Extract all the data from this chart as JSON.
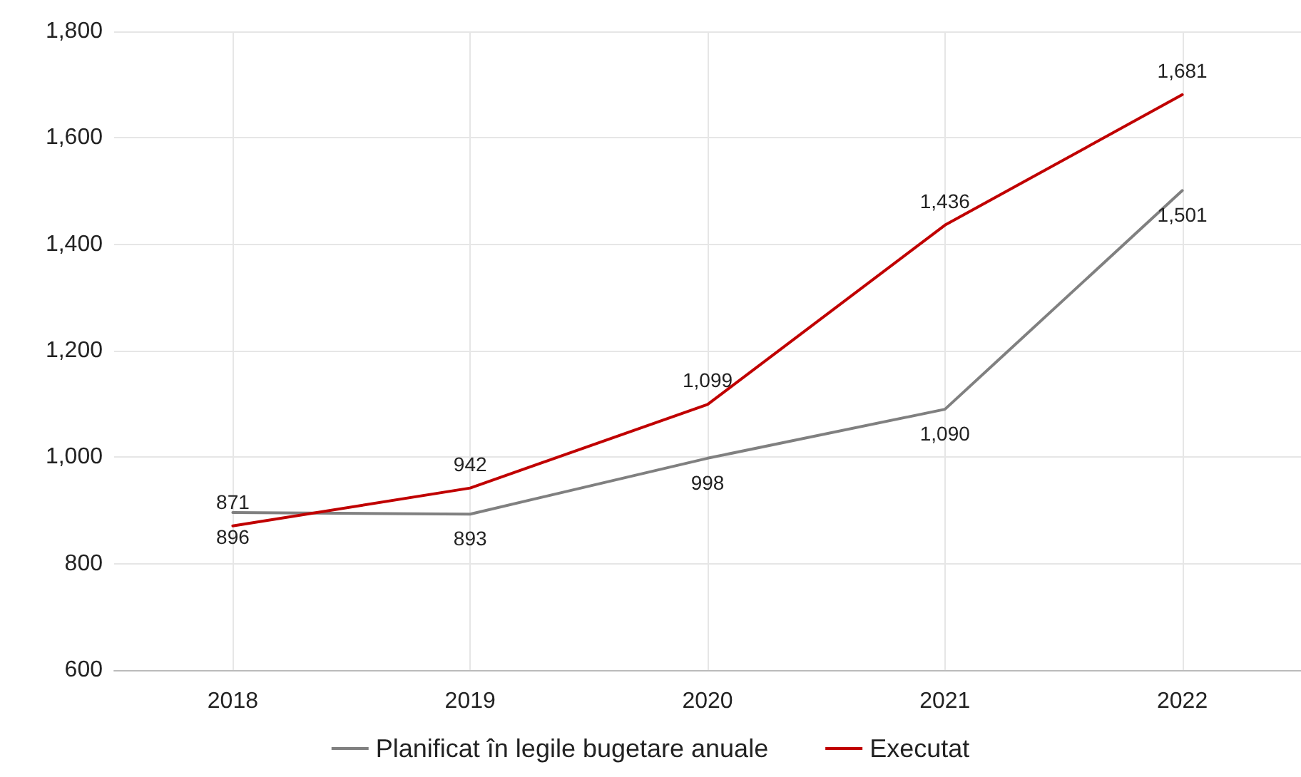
{
  "chart_data": {
    "type": "line",
    "categories": [
      "2018",
      "2019",
      "2020",
      "2021",
      "2022"
    ],
    "series": [
      {
        "name": "Planificat în legile bugetare anuale",
        "color": "#808080",
        "values": [
          896,
          893,
          998,
          1090,
          1501
        ],
        "value_labels": [
          "896",
          "893",
          "998",
          "1,090",
          "1,501"
        ]
      },
      {
        "name": "Executat",
        "color": "#c00000",
        "values": [
          871,
          942,
          1099,
          1436,
          1681
        ],
        "value_labels": [
          "871",
          "942",
          "1,099",
          "1,436",
          "1,681"
        ]
      }
    ],
    "ylim": [
      600,
      1800
    ],
    "yticks": [
      {
        "value": 600,
        "label": "600"
      },
      {
        "value": 800,
        "label": "800"
      },
      {
        "value": 1000,
        "label": "1,000"
      },
      {
        "value": 1200,
        "label": "1,200"
      },
      {
        "value": 1400,
        "label": "1,400"
      },
      {
        "value": 1600,
        "label": "1,600"
      },
      {
        "value": 1800,
        "label": "1,800"
      }
    ],
    "grid": true,
    "legend": "bottom",
    "marker": "none",
    "line_style": "solid"
  }
}
